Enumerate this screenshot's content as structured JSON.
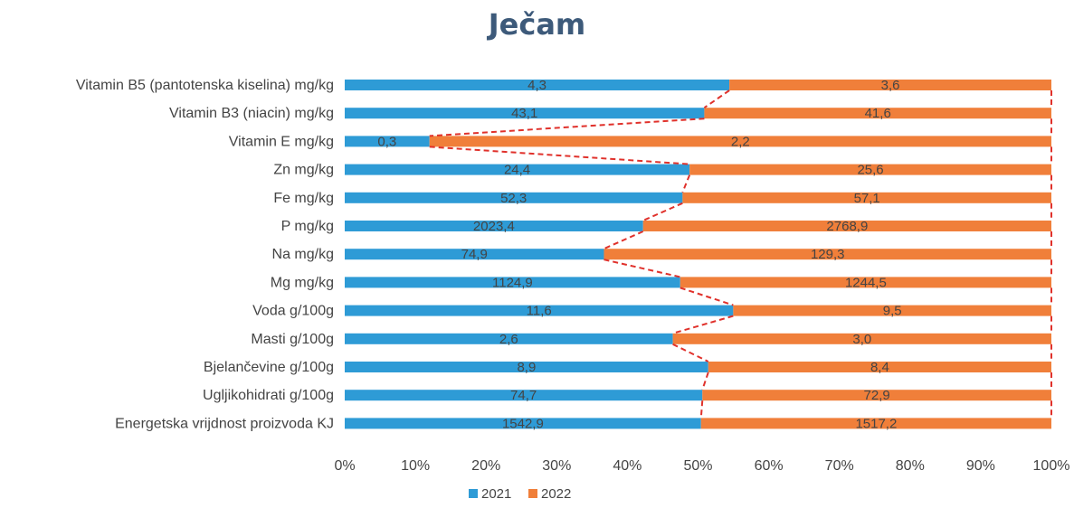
{
  "chart_data": {
    "type": "bar",
    "orientation": "horizontal",
    "stacked": "100%",
    "title": "Ječam",
    "categories": [
      "Vitamin B5 (pantotenska kiselina) mg/kg",
      "Vitamin B3 (niacin) mg/kg",
      "Vitamin E mg/kg",
      "Zn mg/kg",
      "Fe mg/kg",
      "P mg/kg",
      "Na mg/kg",
      "Mg mg/kg",
      "Voda g/100g",
      "Masti g/100g",
      "Bjelančevine g/100g",
      "Ugljikohidrati g/100g",
      "Energetska vrijdnost proizvoda KJ"
    ],
    "series": [
      {
        "name": "2021",
        "color": "#2e9bd6",
        "values": [
          4.3,
          43.1,
          0.3,
          24.4,
          52.3,
          2023.4,
          74.9,
          1124.9,
          11.6,
          2.6,
          8.9,
          74.7,
          1542.9
        ],
        "labels": [
          "4,3",
          "43,1",
          "0,3",
          "24,4",
          "52,3",
          "2023,4",
          "74,9",
          "1124,9",
          "11,6",
          "2,6",
          "8,9",
          "74,7",
          "1542,9"
        ]
      },
      {
        "name": "2022",
        "color": "#f07f3a",
        "values": [
          3.6,
          41.6,
          2.2,
          25.6,
          57.1,
          2768.9,
          129.3,
          1244.5,
          9.5,
          3.0,
          8.4,
          72.9,
          1517.2
        ],
        "labels": [
          "3,6",
          "41,6",
          "2,2",
          "25,6",
          "57,1",
          "2768,9",
          "129,3",
          "1244,5",
          "9,5",
          "3,0",
          "8,4",
          "72,9",
          "1517,2"
        ]
      }
    ],
    "x_ticks": [
      "0%",
      "10%",
      "20%",
      "30%",
      "40%",
      "50%",
      "60%",
      "70%",
      "80%",
      "90%",
      "100%"
    ],
    "xlim": [
      0,
      100
    ],
    "grid": false,
    "series_lines": true,
    "series_line_color": "#e0312b",
    "legend_position": "bottom"
  }
}
